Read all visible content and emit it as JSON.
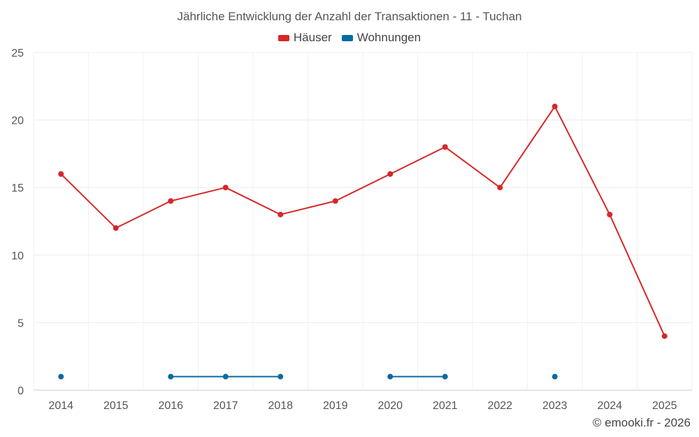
{
  "chart_data": {
    "type": "line",
    "title": "Jährliche Entwicklung der Anzahl der Transaktionen - 11 - Tuchan",
    "categories": [
      "2014",
      "2015",
      "2016",
      "2017",
      "2018",
      "2019",
      "2020",
      "2021",
      "2022",
      "2023",
      "2024",
      "2025"
    ],
    "series": [
      {
        "name": "Häuser",
        "color": "#d62728",
        "values": [
          16,
          12,
          14,
          15,
          13,
          14,
          16,
          18,
          15,
          21,
          13,
          4
        ]
      },
      {
        "name": "Wohnungen",
        "color": "#0b6aa2",
        "values": [
          1,
          null,
          1,
          1,
          1,
          null,
          1,
          1,
          null,
          1,
          null,
          null
        ]
      }
    ],
    "ylim": [
      0,
      25
    ],
    "yticks": [
      "0",
      "5",
      "10",
      "15",
      "20",
      "25"
    ],
    "grid": true,
    "legend": "top-center"
  },
  "credit": "© emooki.fr - 2026"
}
